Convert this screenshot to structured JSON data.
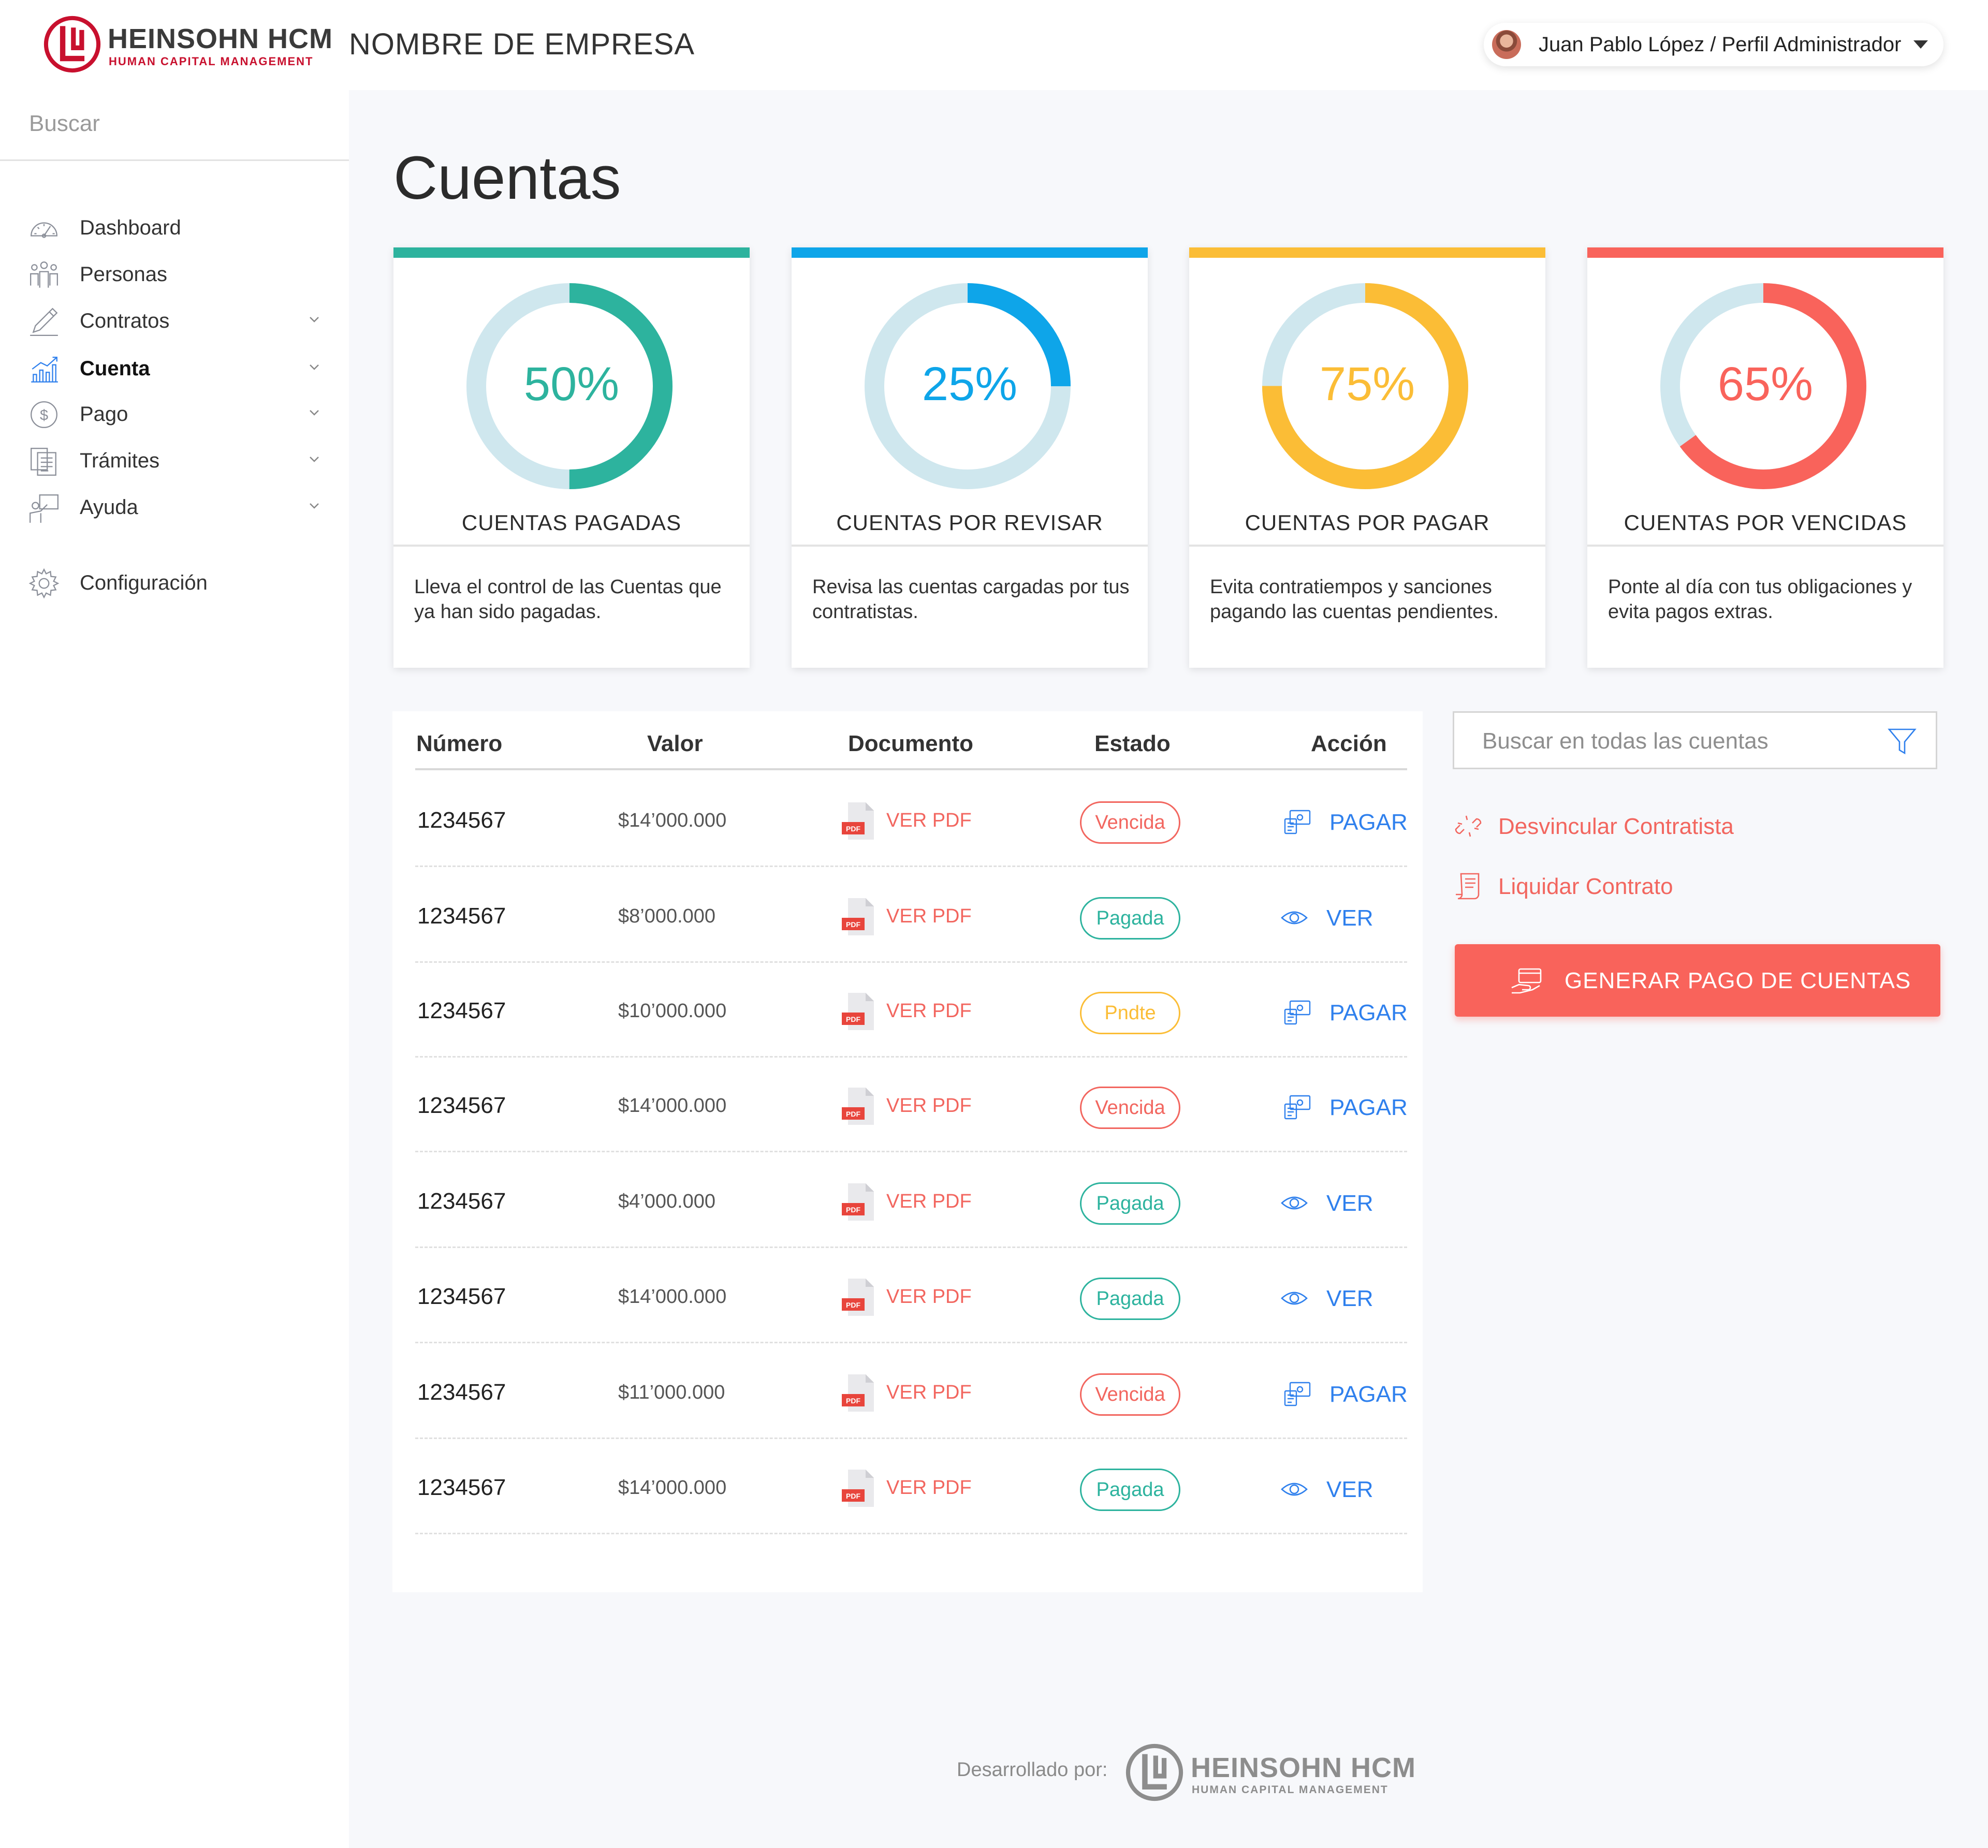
{
  "header": {
    "brand": "HEINSOHN HCM",
    "brand_tagline": "HUMAN CAPITAL MANAGEMENT",
    "company": "NOMBRE DE EMPRESA",
    "user_label": "Juan Pablo López / Perfil Administrador"
  },
  "sidebar": {
    "search_placeholder": "Buscar",
    "items": [
      {
        "label": "Dashboard",
        "icon": "speedometer-icon",
        "expandable": false,
        "active": false
      },
      {
        "label": "Personas",
        "icon": "people-icon",
        "expandable": false,
        "active": false
      },
      {
        "label": "Contratos",
        "icon": "pen-icon",
        "expandable": true,
        "active": false
      },
      {
        "label": "Cuenta",
        "icon": "bar-chart-icon",
        "expandable": true,
        "active": true
      },
      {
        "label": "Pago",
        "icon": "dollar-coin-icon",
        "expandable": true,
        "active": false
      },
      {
        "label": "Trámites",
        "icon": "documents-icon",
        "expandable": true,
        "active": false
      },
      {
        "label": "Ayuda",
        "icon": "presenter-icon",
        "expandable": true,
        "active": false
      }
    ],
    "settings_label": "Configuración"
  },
  "page": {
    "title": "Cuentas"
  },
  "cards": [
    {
      "percent_label": "50%",
      "percent": 0.5,
      "color": "#2db39e",
      "title": "CUENTAS PAGADAS",
      "description": "Lleva el control de las Cuentas que ya han sido pagadas."
    },
    {
      "percent_label": "25%",
      "percent": 0.25,
      "color": "#0ea5e9",
      "title": "CUENTAS POR REVISAR",
      "description": "Revisa las cuentas cargadas por tus contratistas."
    },
    {
      "percent_label": "75%",
      "percent": 0.75,
      "color": "#fbbd36",
      "title": "CUENTAS POR PAGAR",
      "description": "Evita contratiempos y sanciones pagando las cuentas pendientes."
    },
    {
      "percent_label": "65%",
      "percent": 0.65,
      "color": "#f9635b",
      "title": "CUENTAS POR VENCIDAS",
      "description": "Ponte al día con tus obligaciones y evita pagos extras."
    }
  ],
  "ring_track_color": "#cfe7ee",
  "table": {
    "headers": {
      "numero": "Número",
      "valor": "Valor",
      "documento": "Documento",
      "estado": "Estado",
      "accion": "Acción"
    },
    "pdf_label": "VER PDF",
    "rows": [
      {
        "numero": "1234567",
        "valor": "$14’000.000",
        "estado": "Vencida",
        "estado_color": "#f2665f",
        "accion": "PAGAR",
        "accion_icon": "payment-icon"
      },
      {
        "numero": "1234567",
        "valor": "$8’000.000",
        "estado": "Pagada",
        "estado_color": "#2db39e",
        "accion": "VER",
        "accion_icon": "eye-icon"
      },
      {
        "numero": "1234567",
        "valor": "$10’000.000",
        "estado": "Pndte",
        "estado_color": "#fbbd36",
        "accion": "PAGAR",
        "accion_icon": "payment-icon"
      },
      {
        "numero": "1234567",
        "valor": "$14’000.000",
        "estado": "Vencida",
        "estado_color": "#f2665f",
        "accion": "PAGAR",
        "accion_icon": "payment-icon"
      },
      {
        "numero": "1234567",
        "valor": "$4’000.000",
        "estado": "Pagada",
        "estado_color": "#2db39e",
        "accion": "VER",
        "accion_icon": "eye-icon"
      },
      {
        "numero": "1234567",
        "valor": "$14’000.000",
        "estado": "Pagada",
        "estado_color": "#2db39e",
        "accion": "VER",
        "accion_icon": "eye-icon"
      },
      {
        "numero": "1234567",
        "valor": "$11’000.000",
        "estado": "Vencida",
        "estado_color": "#f2665f",
        "accion": "PAGAR",
        "accion_icon": "payment-icon"
      },
      {
        "numero": "1234567",
        "valor": "$14’000.000",
        "estado": "Pagada",
        "estado_color": "#2db39e",
        "accion": "VER",
        "accion_icon": "eye-icon"
      }
    ]
  },
  "side_actions": {
    "search_placeholder": "Buscar en todas las cuentas",
    "unlink_label": "Desvincular Contratista",
    "liquidate_label": "Liquidar Contrato",
    "generate_label": "GENERAR PAGO DE CUENTAS"
  },
  "footer": {
    "developed_by": "Desarrollado por:",
    "brand": "HEINSOHN HCM",
    "brand_tagline": "HUMAN CAPITAL MANAGEMENT"
  }
}
